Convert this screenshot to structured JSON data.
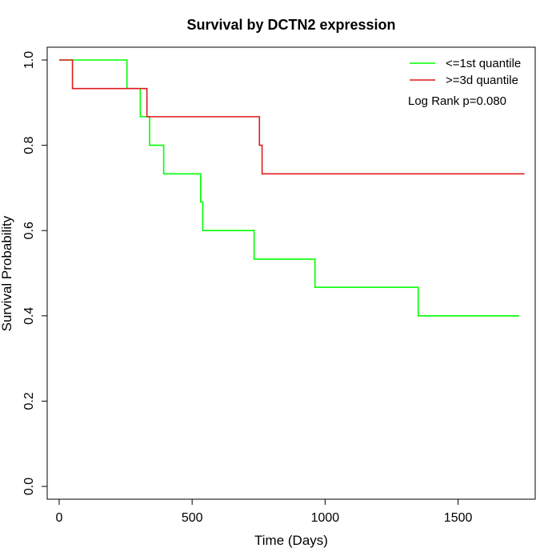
{
  "chart_data": {
    "type": "line",
    "title": "Survival by DCTN2 expression",
    "xlabel": "Time (Days)",
    "ylabel": "Survival Probability",
    "xlim": [
      -45,
      1790
    ],
    "ylim": [
      -0.03,
      1.03
    ],
    "x_ticks": [
      0,
      500,
      1000,
      1500
    ],
    "x_tick_labels": [
      "0",
      "500",
      "1000",
      "1500"
    ],
    "y_ticks": [
      0.0,
      0.2,
      0.4,
      0.6,
      0.8,
      1.0
    ],
    "y_tick_labels": [
      "0.0",
      "0.2",
      "0.4",
      "0.6",
      "0.8",
      "1.0"
    ],
    "grid": false,
    "legend_position": "top-right",
    "annotation": "Log Rank p=0.080",
    "series": [
      {
        "name": "<=1st quantile",
        "color": "#00ff00",
        "step_points": [
          [
            0,
            1.0
          ],
          [
            255,
            0.933
          ],
          [
            305,
            0.867
          ],
          [
            340,
            0.8
          ],
          [
            393,
            0.733
          ],
          [
            532,
            0.667
          ],
          [
            540,
            0.6
          ],
          [
            733,
            0.533
          ],
          [
            962,
            0.467
          ],
          [
            1350,
            0.4
          ],
          [
            1730,
            0.4
          ]
        ]
      },
      {
        "name": ">=3d quantile",
        "color": "#e31a1c",
        "step_points": [
          [
            0,
            1.0
          ],
          [
            50,
            0.933
          ],
          [
            330,
            0.867
          ],
          [
            753,
            0.8
          ],
          [
            763,
            0.733
          ],
          [
            1750,
            0.733
          ]
        ]
      }
    ]
  }
}
